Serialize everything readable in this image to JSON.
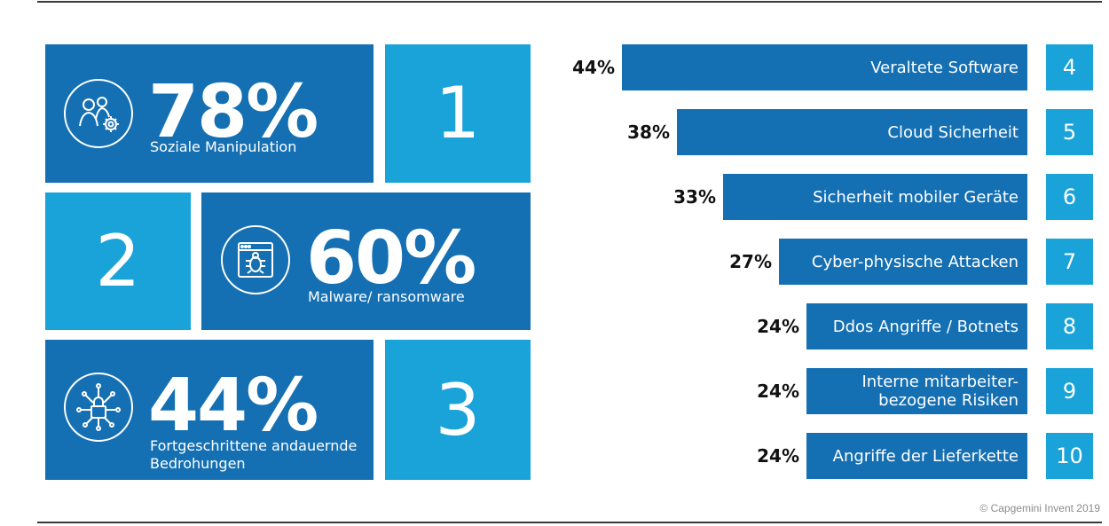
{
  "colors": {
    "dark_blue": "#1570b3",
    "light_blue": "#1aa3d9"
  },
  "top_three": [
    {
      "rank": "1",
      "value": "78%",
      "label": "Soziale Manipulation",
      "icon": "people-gear-icon"
    },
    {
      "rank": "2",
      "value": "60%",
      "label": "Malware/ ransomware",
      "icon": "bug-window-icon"
    },
    {
      "rank": "3",
      "value": "44%",
      "label": "Fortgeschrittene andauernde Bedrohungen",
      "icon": "network-lock-icon"
    }
  ],
  "chart_data": {
    "type": "bar",
    "orientation": "horizontal",
    "categories": [
      "Veraltete Software",
      "Cloud Sicherheit",
      "Sicherheit mobiler Geräte",
      "Cyber-physische Attacken",
      "Ddos Angriffe / Botnets",
      "Interne mitarbeiter-\nbezogene Risiken",
      "Angriffe der Lieferkette"
    ],
    "values": [
      44,
      38,
      33,
      27,
      24,
      24,
      24
    ],
    "value_labels": [
      "44%",
      "38%",
      "33%",
      "27%",
      "24%",
      "24%",
      "24%"
    ],
    "ranks": [
      "4",
      "5",
      "6",
      "7",
      "8",
      "9",
      "10"
    ],
    "xlim": [
      0,
      44
    ],
    "grid": false
  },
  "credit": "© Capgemini Invent 2019"
}
